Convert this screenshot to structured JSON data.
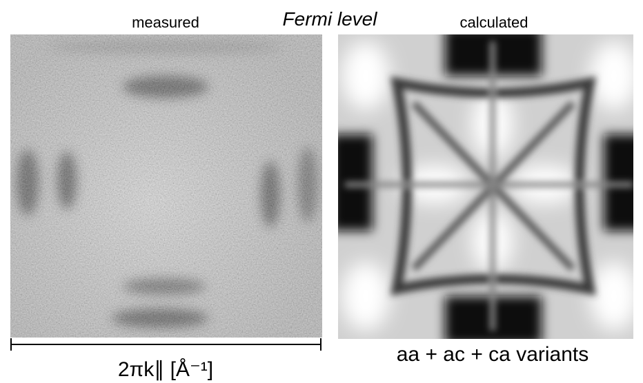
{
  "figure": {
    "title": "Fermi level",
    "left_label": "measured",
    "right_label": "calculated",
    "right_caption": "aa + ac + ca variants",
    "axis_label": "2πk∥ [Å⁻¹]"
  }
}
